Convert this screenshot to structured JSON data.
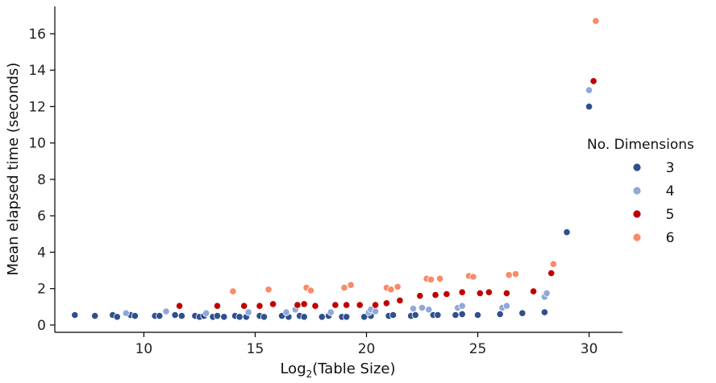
{
  "chart_data": {
    "type": "scatter",
    "xlabel": "Log",
    "xlabel_sub": "2",
    "xlabel_rest": "(Table Size)",
    "ylabel": "Mean elapsed time (seconds)",
    "xlim": [
      6.0,
      31.5
    ],
    "ylim": [
      -0.4,
      17.5
    ],
    "xticks": [
      10,
      15,
      20,
      25,
      30
    ],
    "yticks": [
      0,
      2,
      4,
      6,
      8,
      10,
      12,
      14,
      16
    ],
    "grid": false,
    "legend": {
      "title": "No. Dimensions",
      "placement": "right"
    },
    "series": [
      {
        "name": "3",
        "color": "#2f4f8f",
        "points": [
          [
            6.9,
            0.55
          ],
          [
            7.8,
            0.5
          ],
          [
            8.6,
            0.55
          ],
          [
            8.8,
            0.45
          ],
          [
            9.4,
            0.55
          ],
          [
            9.6,
            0.5
          ],
          [
            10.5,
            0.5
          ],
          [
            10.7,
            0.5
          ],
          [
            11.4,
            0.55
          ],
          [
            11.7,
            0.5
          ],
          [
            12.3,
            0.5
          ],
          [
            12.5,
            0.45
          ],
          [
            12.7,
            0.5
          ],
          [
            13.1,
            0.45
          ],
          [
            13.3,
            0.5
          ],
          [
            13.6,
            0.45
          ],
          [
            14.1,
            0.5
          ],
          [
            14.3,
            0.45
          ],
          [
            14.6,
            0.45
          ],
          [
            15.2,
            0.5
          ],
          [
            15.4,
            0.45
          ],
          [
            16.2,
            0.5
          ],
          [
            16.5,
            0.45
          ],
          [
            17.0,
            0.5
          ],
          [
            17.2,
            0.45
          ],
          [
            18.0,
            0.45
          ],
          [
            18.3,
            0.5
          ],
          [
            18.9,
            0.45
          ],
          [
            19.1,
            0.45
          ],
          [
            19.9,
            0.45
          ],
          [
            20.2,
            0.5
          ],
          [
            21.0,
            0.5
          ],
          [
            21.2,
            0.55
          ],
          [
            22.0,
            0.5
          ],
          [
            22.2,
            0.55
          ],
          [
            23.0,
            0.55
          ],
          [
            23.2,
            0.55
          ],
          [
            24.0,
            0.55
          ],
          [
            24.3,
            0.6
          ],
          [
            25.0,
            0.55
          ],
          [
            26.0,
            0.6
          ],
          [
            27.0,
            0.65
          ],
          [
            28.0,
            0.7
          ],
          [
            29.0,
            5.1
          ],
          [
            30.0,
            12.0
          ]
        ]
      },
      {
        "name": "4",
        "color": "#90a8d8",
        "points": [
          [
            9.2,
            0.65
          ],
          [
            11.0,
            0.75
          ],
          [
            12.8,
            0.65
          ],
          [
            14.7,
            0.7
          ],
          [
            16.4,
            0.7
          ],
          [
            16.8,
            0.85
          ],
          [
            18.4,
            0.7
          ],
          [
            20.1,
            0.7
          ],
          [
            20.2,
            0.85
          ],
          [
            20.4,
            0.75
          ],
          [
            22.1,
            0.9
          ],
          [
            22.5,
            0.95
          ],
          [
            22.8,
            0.85
          ],
          [
            24.1,
            0.95
          ],
          [
            24.3,
            1.05
          ],
          [
            26.1,
            0.95
          ],
          [
            26.3,
            1.05
          ],
          [
            28.0,
            1.55
          ],
          [
            28.1,
            1.75
          ],
          [
            30.0,
            12.9
          ]
        ]
      },
      {
        "name": "5",
        "color": "#c00000",
        "points": [
          [
            11.6,
            1.05
          ],
          [
            13.3,
            1.05
          ],
          [
            14.5,
            1.05
          ],
          [
            15.2,
            1.05
          ],
          [
            15.8,
            1.15
          ],
          [
            16.9,
            1.1
          ],
          [
            17.2,
            1.15
          ],
          [
            17.7,
            1.05
          ],
          [
            18.6,
            1.1
          ],
          [
            19.1,
            1.1
          ],
          [
            19.7,
            1.1
          ],
          [
            20.4,
            1.1
          ],
          [
            20.9,
            1.2
          ],
          [
            21.5,
            1.35
          ],
          [
            22.4,
            1.6
          ],
          [
            23.1,
            1.65
          ],
          [
            23.6,
            1.7
          ],
          [
            24.3,
            1.8
          ],
          [
            25.1,
            1.75
          ],
          [
            25.5,
            1.8
          ],
          [
            26.3,
            1.75
          ],
          [
            27.5,
            1.85
          ],
          [
            28.3,
            2.85
          ],
          [
            30.2,
            13.4
          ]
        ]
      },
      {
        "name": "6",
        "color": "#fa8a68",
        "points": [
          [
            14.0,
            1.85
          ],
          [
            15.6,
            1.95
          ],
          [
            17.3,
            2.05
          ],
          [
            17.5,
            1.9
          ],
          [
            19.0,
            2.05
          ],
          [
            19.3,
            2.2
          ],
          [
            20.9,
            2.05
          ],
          [
            21.1,
            1.95
          ],
          [
            21.4,
            2.1
          ],
          [
            22.7,
            2.55
          ],
          [
            22.9,
            2.5
          ],
          [
            23.3,
            2.55
          ],
          [
            24.6,
            2.7
          ],
          [
            24.8,
            2.65
          ],
          [
            26.4,
            2.75
          ],
          [
            26.7,
            2.8
          ],
          [
            28.4,
            3.35
          ],
          [
            30.3,
            16.7
          ]
        ]
      }
    ]
  }
}
